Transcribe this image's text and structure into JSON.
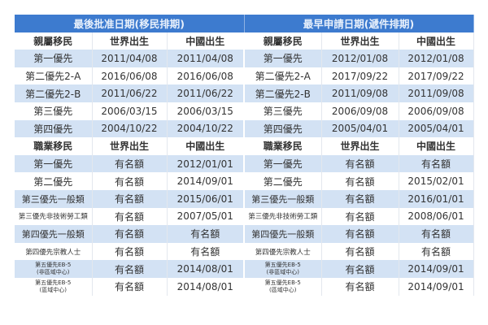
{
  "headers": {
    "left": "最後批准日期(移民排期)",
    "right": "最早申請日期(遞件排期)"
  },
  "colors": {
    "band": "#3d7bcf",
    "stripe": "#d3e2f4"
  },
  "rows": [
    {
      "type": "hdr",
      "cells": [
        "親屬移民",
        "世界出生",
        "中國出生",
        "親屬移民",
        "世界出生",
        "中國出生"
      ]
    },
    {
      "type": "data",
      "cells": [
        "第一優先",
        "2011/04/08",
        "2011/04/08",
        "第一優先",
        "2012/01/08",
        "2012/01/08"
      ]
    },
    {
      "type": "data",
      "cells": [
        "第二優先2-A",
        "2016/06/08",
        "2016/06/08",
        "第二優先2-A",
        "2017/09/22",
        "2017/09/22"
      ]
    },
    {
      "type": "data",
      "cells": [
        "第二優先2-B",
        "2011/06/22",
        "2011/06/22",
        "第二優先2-B",
        "2011/09/08",
        "2011/09/08"
      ]
    },
    {
      "type": "data",
      "cells": [
        "第三優先",
        "2006/03/15",
        "2006/03/15",
        "第三優先",
        "2006/09/08",
        "2006/09/08"
      ]
    },
    {
      "type": "data",
      "cells": [
        "第四優先",
        "2004/10/22",
        "2004/10/22",
        "第四優先",
        "2005/04/01",
        "2005/04/01"
      ]
    },
    {
      "type": "hdr",
      "cells": [
        "職業移民",
        "世界出生",
        "中國出生",
        "職業移民",
        "世界出生",
        "中國出生"
      ]
    },
    {
      "type": "data",
      "cells": [
        "第一優先",
        "有名額",
        "2012/01/01",
        "第一優先",
        "有名額",
        "有名額"
      ]
    },
    {
      "type": "data",
      "cells": [
        "第二優先",
        "有名額",
        "2014/09/01",
        "第二優先",
        "有名額",
        "2015/02/01"
      ]
    },
    {
      "type": "data",
      "size": "mid",
      "cells": [
        "第三優先一般類",
        "有名額",
        "2015/06/01",
        "第三優先一般類",
        "有名額",
        "2016/01/01"
      ]
    },
    {
      "type": "data",
      "size": "small",
      "cells": [
        "第三優先非技術勞工類",
        "有名額",
        "2007/05/01",
        "第三優先非技術勞工類",
        "有名額",
        "2008/06/01"
      ]
    },
    {
      "type": "data",
      "size": "mid",
      "cells": [
        "第四優先一般類",
        "有名額",
        "有名額",
        "第四優先一般類",
        "有名額",
        "有名額"
      ]
    },
    {
      "type": "data",
      "size": "small",
      "cells": [
        "第四優先宗教人士",
        "有名額",
        "有名額",
        "第四優先宗教人士",
        "有名額",
        "有名額"
      ]
    },
    {
      "type": "data",
      "size": "tiny",
      "cells": [
        "第五優先EB-5\n(非區域中心)",
        "有名額",
        "2014/08/01",
        "第五優先EB-5\n(非區域中心)",
        "有名額",
        "2014/09/01"
      ]
    },
    {
      "type": "data",
      "size": "tiny",
      "cells": [
        "第五優先EB-5\n(區域中心)",
        "有名額",
        "2014/08/01",
        "第五優先EB-5\n(區域中心)",
        "有名額",
        "2014/09/01"
      ]
    }
  ]
}
